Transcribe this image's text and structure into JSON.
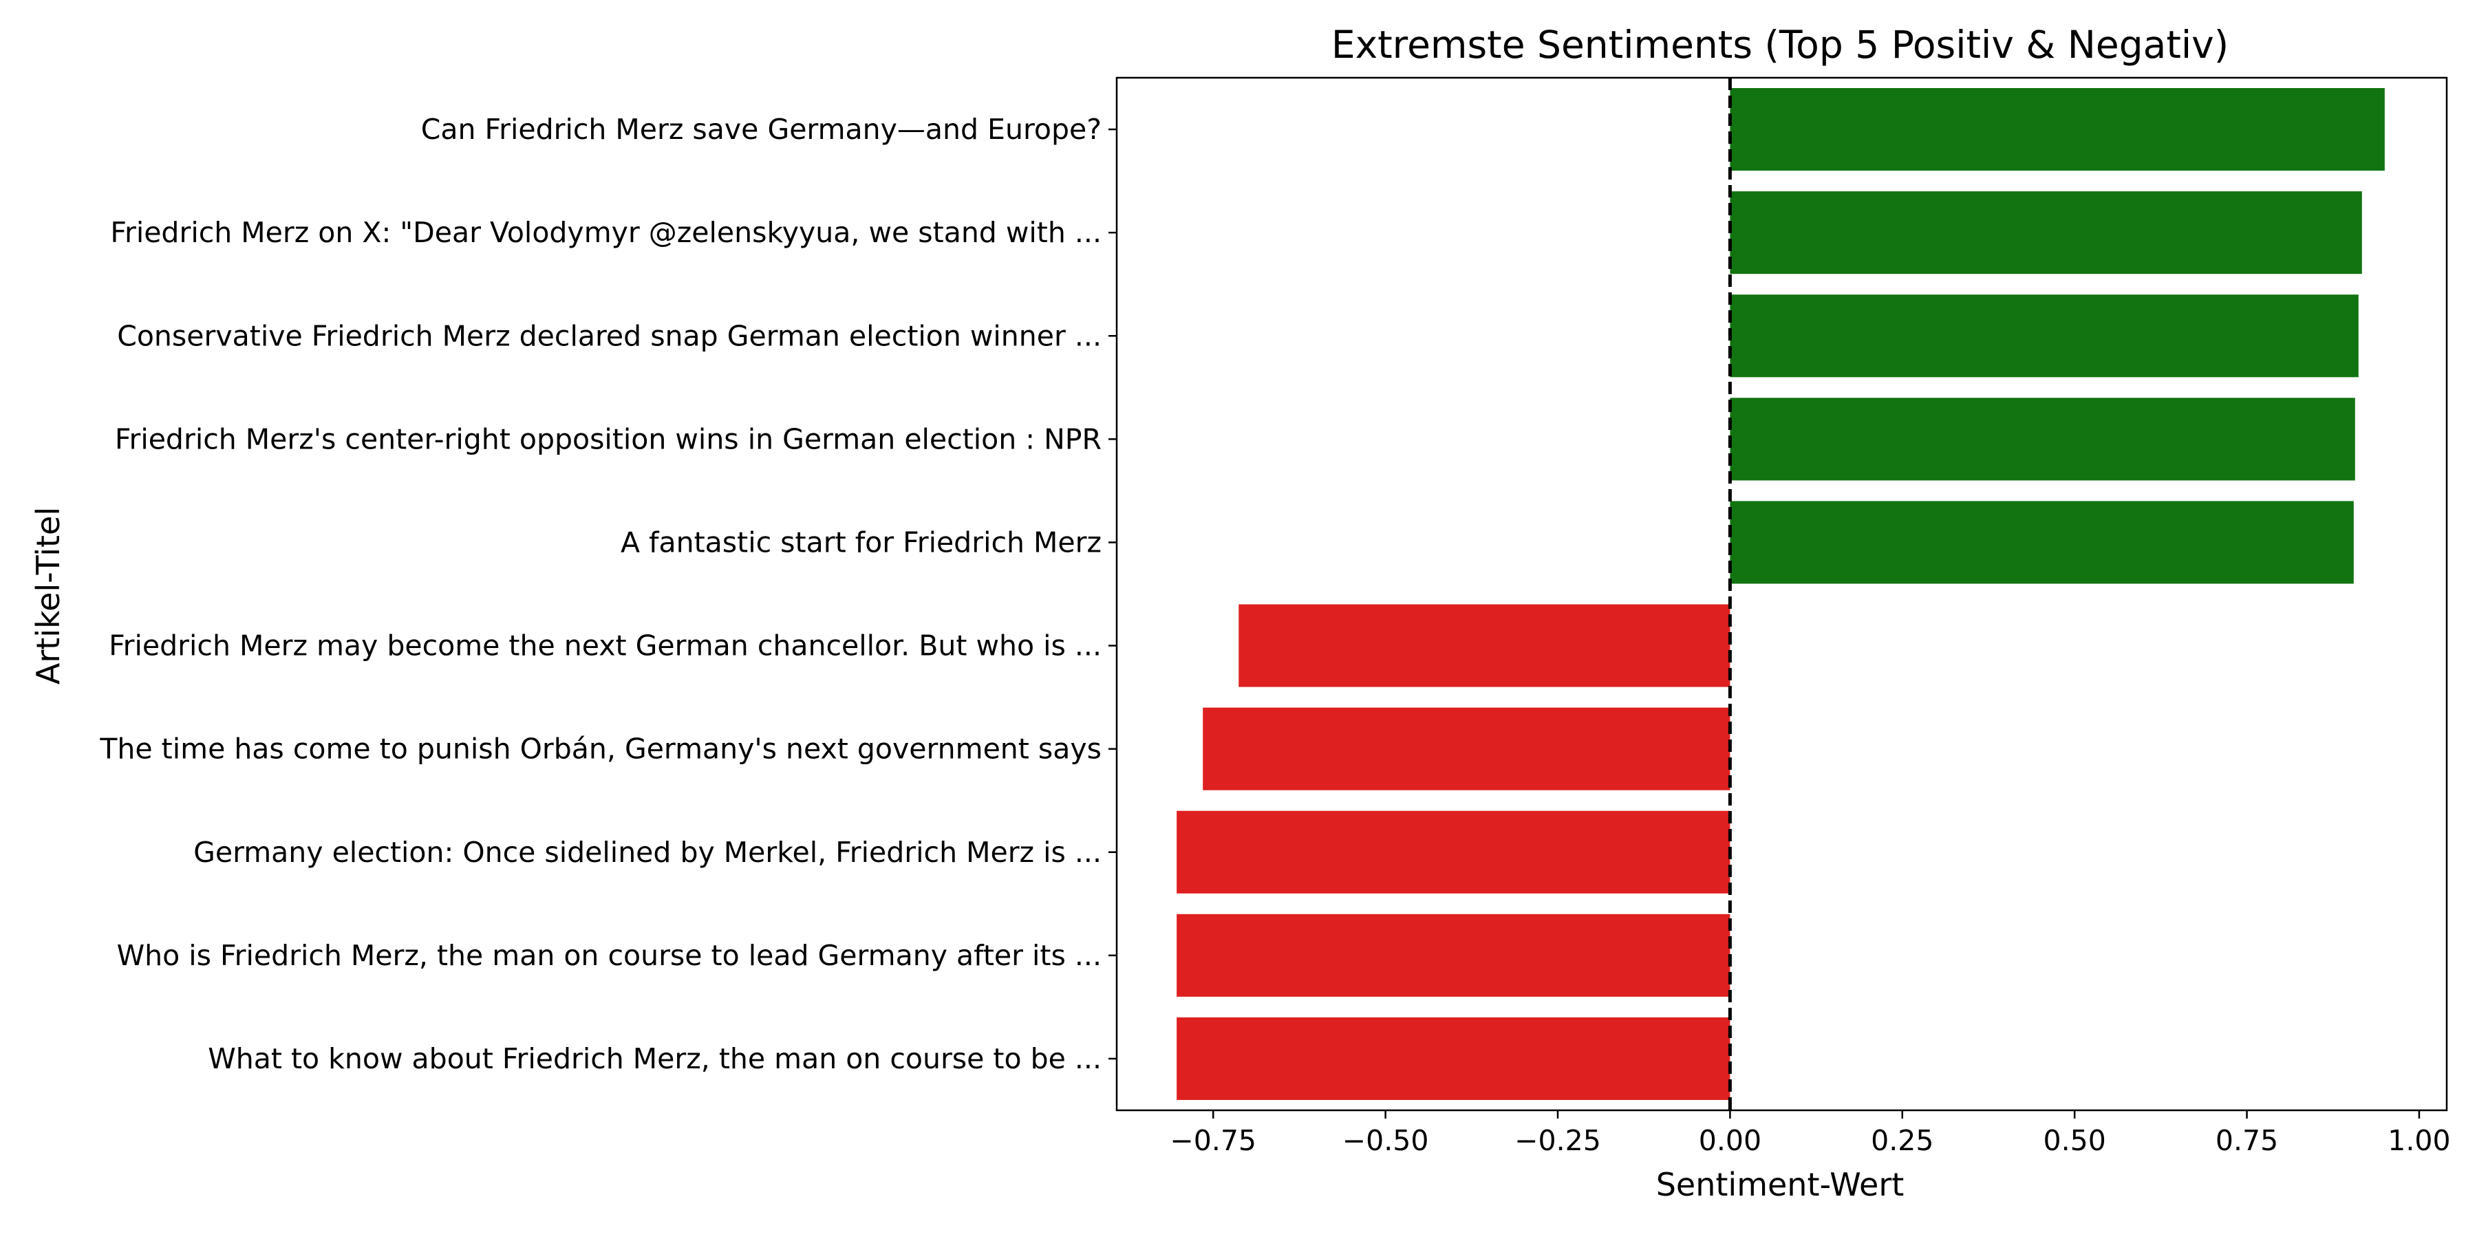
{
  "chart_data": {
    "type": "bar",
    "orientation": "horizontal",
    "title": "Extremste Sentiments (Top 5 Positiv & Negativ)",
    "xlabel": "Sentiment-Wert",
    "ylabel": "Artikel-Titel",
    "xlim": [
      -0.89,
      1.04
    ],
    "xticks": [
      -0.75,
      -0.5,
      -0.25,
      0.0,
      0.25,
      0.5,
      0.75,
      1.0
    ],
    "xtick_labels": [
      "−0.75",
      "−0.50",
      "−0.25",
      "0.00",
      "0.25",
      "0.50",
      "0.75",
      "1.00"
    ],
    "grid": false,
    "reference_line": {
      "x": 0,
      "style": "dashed"
    },
    "categories": [
      "Can Friedrich Merz save Germany—and Europe?",
      "Friedrich Merz on X: \"Dear Volodymyr @zelenskyyua, we stand with ...",
      "Conservative Friedrich Merz declared snap German election winner ...",
      "Friedrich Merz's center-right opposition wins in German election : NPR",
      "A fantastic start for Friedrich Merz",
      "Friedrich Merz may become the next German chancellor. But who is ...",
      "The time has come to punish Orbán, Germany's next government says",
      "Germany election: Once sidelined by Merkel, Friedrich Merz is ...",
      "Who is Friedrich Merz, the man on course to lead Germany after its ...",
      "What to know about Friedrich Merz, the man on course to be ..."
    ],
    "values": [
      0.95,
      0.917,
      0.912,
      0.907,
      0.905,
      -0.713,
      -0.765,
      -0.803,
      -0.803,
      -0.803
    ],
    "colors": {
      "positive": "#127311",
      "negative": "#df2020",
      "reference_line": "#000000"
    }
  }
}
